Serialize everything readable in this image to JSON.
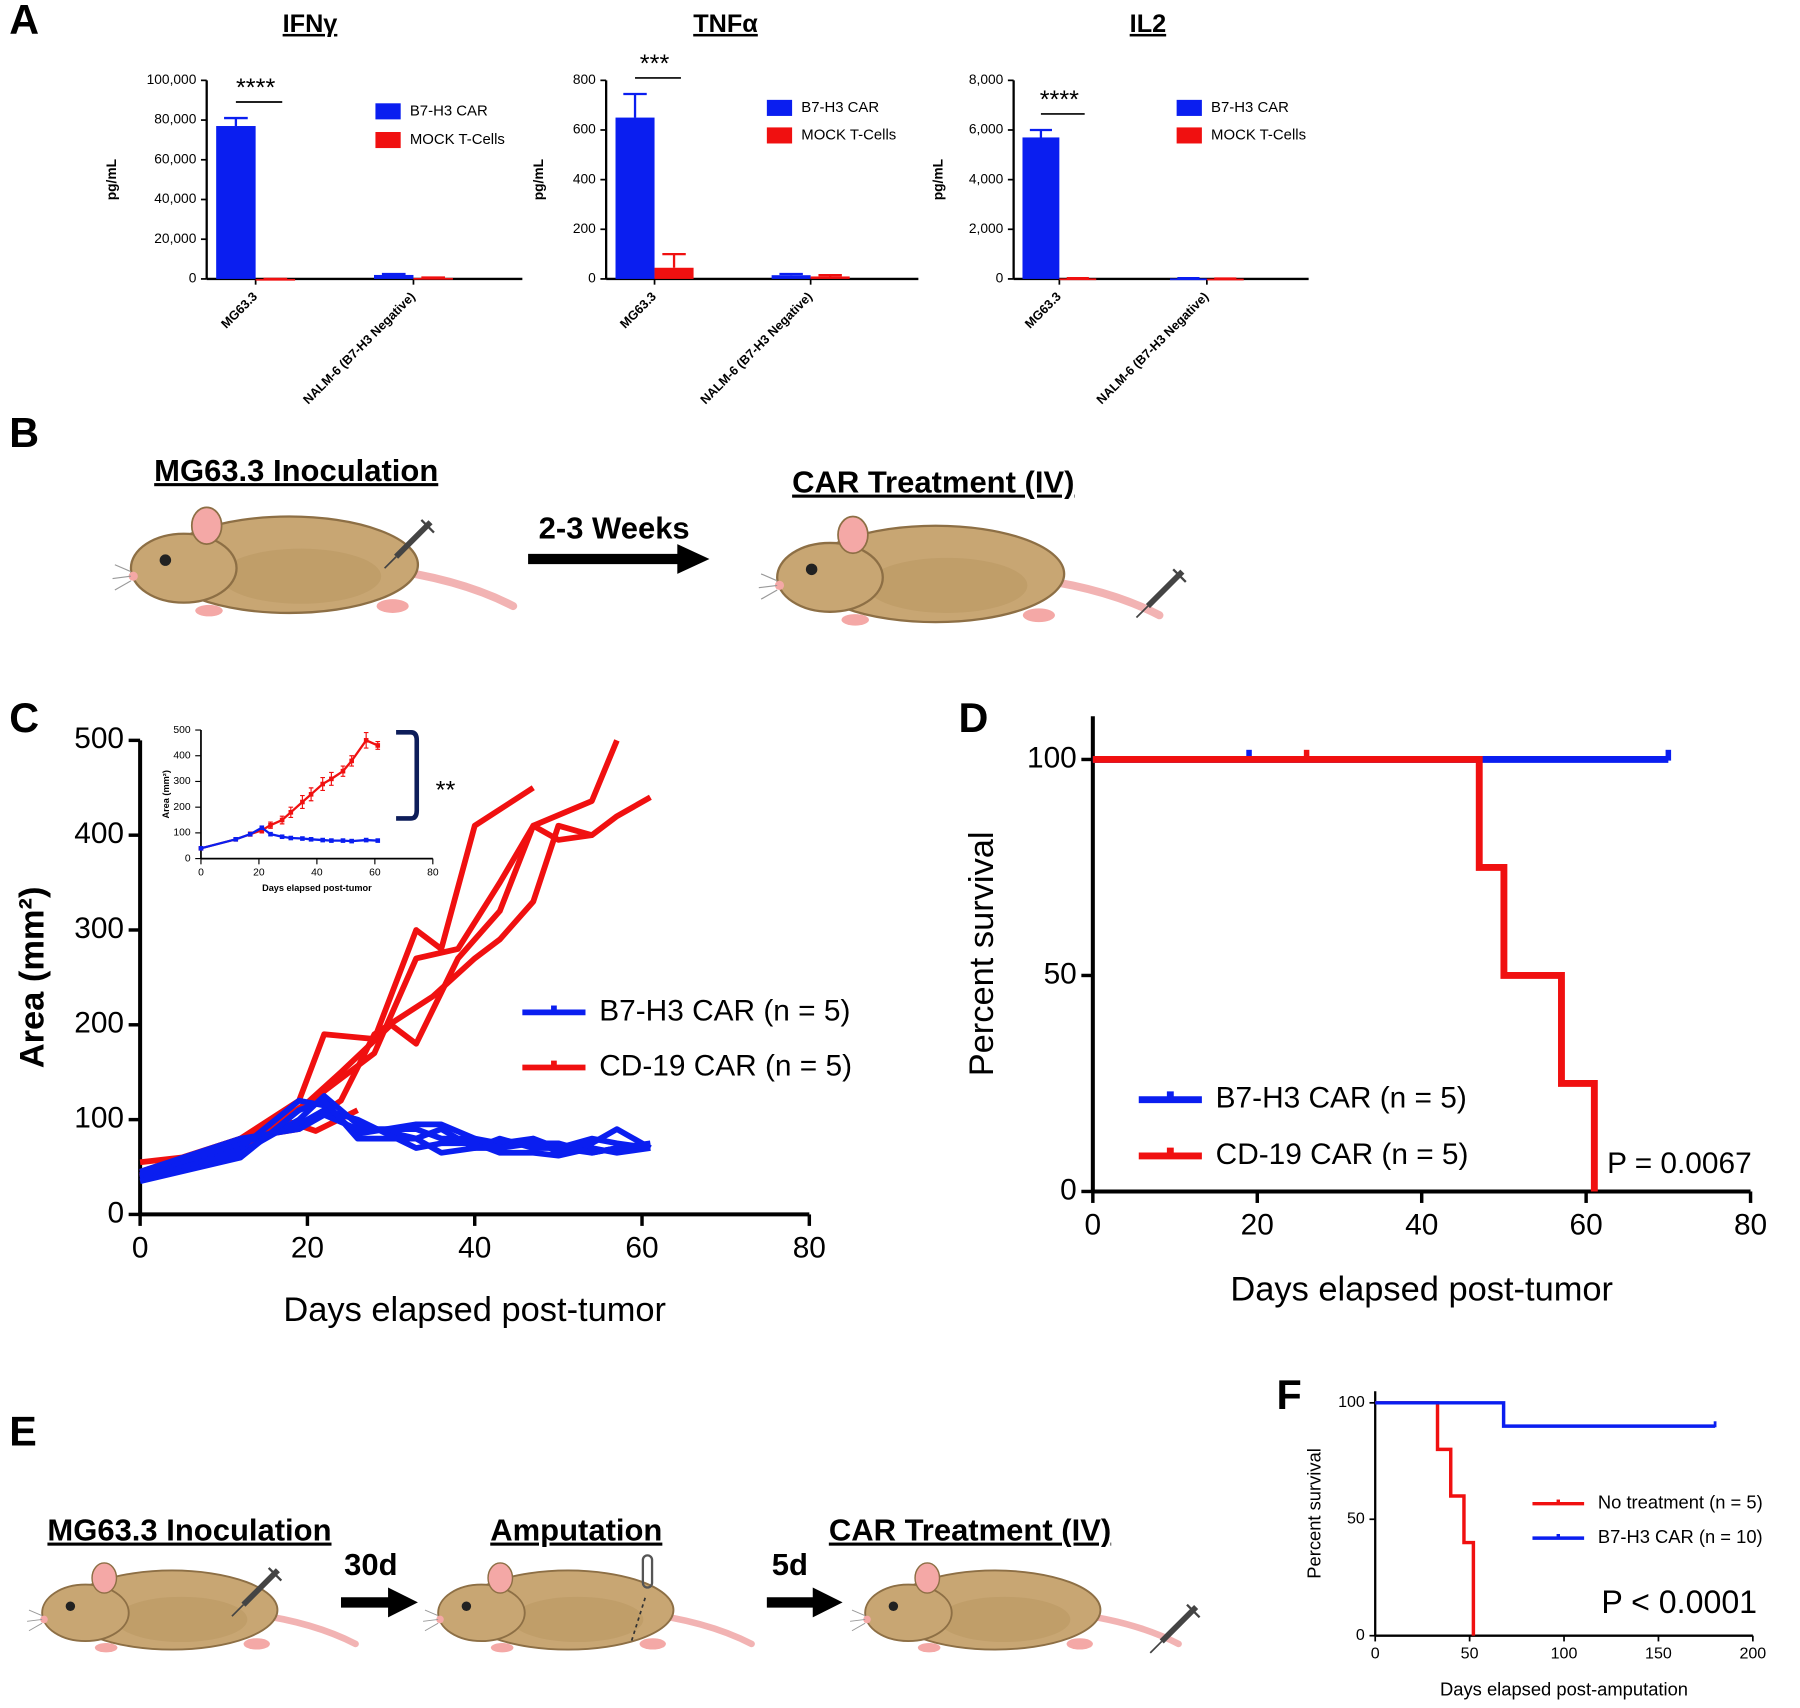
{
  "panel_labels": [
    "A",
    "B",
    "C",
    "D",
    "E",
    "F"
  ],
  "diagrams": {
    "B": {
      "steps": [
        "MG63.3 Inoculation",
        "CAR Treatment (IV)"
      ],
      "arrows": [
        "2-3 Weeks"
      ]
    },
    "E": {
      "steps": [
        "MG63.3 Inoculation",
        "Amputation",
        "CAR Treatment (IV)"
      ],
      "arrows": [
        "30d",
        "5d"
      ]
    }
  },
  "chart_data": [
    {
      "type": "bar",
      "title": "IFNγ",
      "ylabel": "pg/mL",
      "categories": [
        "MG63.3",
        "NALM-6 (B7-H3 Negative)"
      ],
      "series": [
        {
          "name": "B7-H3 CAR",
          "color": "#0a1ef0",
          "values": [
            77000,
            2000
          ],
          "errors": [
            4000,
            500
          ]
        },
        {
          "name": "MOCK T-Cells",
          "color": "#f01010",
          "values": [
            0,
            500
          ],
          "errors": [
            0,
            200
          ]
        }
      ],
      "annotation": "****",
      "ylim": [
        0,
        100000
      ],
      "yticks": [
        0,
        {
          "value": 20000,
          "label": "20,000"
        },
        {
          "value": 40000,
          "label": "40,000"
        },
        {
          "value": 60000,
          "label": "60,000"
        },
        {
          "value": 80000,
          "label": "80,000"
        },
        {
          "value": 100000,
          "label": "100,000"
        }
      ]
    },
    {
      "type": "bar",
      "title": "TNFα",
      "ylabel": "pg/mL",
      "categories": [
        "MG63.3",
        "NALM-6 (B7-H3 Negative)"
      ],
      "series": [
        {
          "name": "B7-H3 CAR",
          "color": "#0a1ef0",
          "values": [
            650,
            15
          ],
          "errors": [
            95,
            5
          ]
        },
        {
          "name": "MOCK T-Cells",
          "color": "#f01010",
          "values": [
            45,
            10
          ],
          "errors": [
            55,
            5
          ]
        }
      ],
      "annotation": "***",
      "ylim": [
        0,
        800
      ],
      "yticks": [
        0,
        200,
        400,
        600,
        800
      ]
    },
    {
      "type": "bar",
      "title": "IL2",
      "ylabel": "pg/mL",
      "categories": [
        "MG63.3",
        "NALM-6 (B7-H3 Negative)"
      ],
      "series": [
        {
          "name": "B7-H3 CAR",
          "color": "#0a1ef0",
          "values": [
            5700,
            20
          ],
          "errors": [
            300,
            10
          ]
        },
        {
          "name": "MOCK T-Cells",
          "color": "#f01010",
          "values": [
            20,
            10
          ],
          "errors": [
            10,
            5
          ]
        }
      ],
      "annotation": "****",
      "ylim": [
        0,
        8000
      ],
      "yticks": [
        0,
        {
          "value": 2000,
          "label": "2,000"
        },
        {
          "value": 4000,
          "label": "4,000"
        },
        {
          "value": 6000,
          "label": "6,000"
        },
        {
          "value": 8000,
          "label": "8,000"
        }
      ]
    },
    {
      "type": "line",
      "ylabel": "Area (mm²)",
      "xlabel": "Days elapsed post-tumor",
      "xlim": [
        0,
        80
      ],
      "xticks": [
        0,
        20,
        40,
        60,
        80
      ],
      "ylim": [
        0,
        500
      ],
      "yticks": [
        0,
        100,
        200,
        300,
        400,
        500
      ],
      "series": [
        {
          "name": "B7-H3 CAR (n = 5)",
          "color": "#0a1ef0",
          "mice": [
            {
              "x": [
                0,
                12,
                19,
                22,
                26,
                33,
                36,
                40,
                43,
                47,
                50,
                54,
                57,
                61
              ],
              "values": [
                40,
                70,
                120,
                115,
                85,
                95,
                95,
                80,
                75,
                80,
                65,
                75,
                90,
                70
              ]
            },
            {
              "x": [
                0,
                12,
                19,
                22,
                26,
                33,
                36,
                40,
                43,
                47,
                50,
                54,
                57,
                61
              ],
              "values": [
                38,
                65,
                100,
                125,
                95,
                80,
                90,
                70,
                80,
                70,
                70,
                65,
                70,
                72
              ]
            },
            {
              "x": [
                0,
                12,
                19,
                22,
                26,
                33,
                36,
                40,
                43,
                47,
                50,
                54,
                57,
                61
              ],
              "values": [
                42,
                75,
                95,
                110,
                100,
                70,
                75,
                75,
                65,
                65,
                62,
                70,
                65,
                70
              ]
            },
            {
              "x": [
                0,
                12,
                19,
                22,
                26,
                33,
                36,
                40,
                43,
                47,
                50,
                54,
                57,
                61
              ],
              "values": [
                45,
                80,
                90,
                105,
                90,
                90,
                80,
                80,
                70,
                80,
                70,
                80,
                75,
                70
              ]
            },
            {
              "x": [
                0,
                12,
                19,
                22,
                26,
                33,
                36,
                40,
                43,
                47,
                50,
                54,
                57,
                61
              ],
              "values": [
                35,
                60,
                110,
                120,
                80,
                80,
                65,
                70,
                70,
                75,
                75,
                65,
                70,
                75
              ]
            }
          ]
        },
        {
          "name": "CD-19 CAR (n = 5)",
          "color": "#f01010",
          "mice": [
            {
              "x": [
                0,
                5,
                12,
                17,
                21,
                26
              ],
              "values": [
                55,
                60,
                80,
                100,
                88,
                110
              ]
            },
            {
              "x": [
                0,
                12,
                19,
                22,
                28,
                33,
                36,
                40,
                47
              ],
              "values": [
                45,
                80,
                120,
                190,
                185,
                300,
                280,
                410,
                450
              ]
            },
            {
              "x": [
                0,
                12,
                19,
                24,
                30,
                33,
                38,
                43,
                47,
                54,
                57
              ],
              "values": [
                40,
                70,
                110,
                150,
                200,
                180,
                270,
                320,
                410,
                436,
                500
              ]
            },
            {
              "x": [
                0,
                12,
                19,
                24,
                28,
                35,
                40,
                43,
                47,
                50,
                54,
                57,
                61
              ],
              "values": [
                40,
                80,
                90,
                120,
                190,
                230,
                270,
                290,
                330,
                410,
                400,
                420,
                440
              ]
            },
            {
              "x": [
                0,
                12,
                17,
                22,
                28,
                33,
                38,
                43,
                47,
                50,
                54
              ],
              "values": [
                40,
                75,
                100,
                130,
                170,
                270,
                280,
                350,
                410,
                395,
                400
              ]
            }
          ]
        }
      ]
    },
    {
      "type": "line",
      "ylabel": "Area (mm²)",
      "xlabel": "Days elapsed post-tumor",
      "xlim": [
        0,
        80
      ],
      "xticks": [
        0,
        20,
        40,
        60,
        80
      ],
      "ylim": [
        0,
        500
      ],
      "yticks": [
        0,
        100,
        200,
        300,
        400,
        500
      ],
      "annotation": "**",
      "series": [
        {
          "color": "#0a1ef0",
          "x": [
            0,
            12,
            17,
            21,
            24,
            28,
            31,
            35,
            38,
            42,
            45,
            49,
            52,
            57,
            61
          ],
          "values": [
            40,
            75,
            95,
            120,
            95,
            85,
            80,
            78,
            75,
            72,
            70,
            70,
            68,
            72,
            70
          ]
        },
        {
          "color": "#f01010",
          "x": [
            0,
            12,
            17,
            21,
            24,
            28,
            31,
            35,
            38,
            42,
            45,
            49,
            52,
            57,
            61
          ],
          "values": [
            40,
            75,
            95,
            110,
            130,
            150,
            180,
            220,
            250,
            290,
            310,
            340,
            380,
            460,
            440
          ],
          "errors": [
            3,
            5,
            8,
            10,
            12,
            15,
            20,
            25,
            25,
            25,
            25,
            20,
            20,
            30,
            15
          ]
        }
      ]
    },
    {
      "type": "step",
      "ylabel": "Percent survival",
      "xlabel": "Days elapsed post-tumor",
      "xlim": [
        0,
        80
      ],
      "xticks": [
        0,
        20,
        40,
        60,
        80
      ],
      "ylim": [
        0,
        110
      ],
      "yticks": [
        0,
        50,
        100
      ],
      "annotation": "P = 0.0067",
      "series": [
        {
          "name": "B7-H3 CAR (n = 5)",
          "color": "#0a1ef0",
          "x": [
            0,
            70
          ],
          "values": [
            100,
            100
          ],
          "censored": [
            19,
            70
          ]
        },
        {
          "name": "CD-19 CAR (n = 5)",
          "color": "#f01010",
          "x": [
            0,
            47,
            50,
            57,
            61
          ],
          "values": [
            100,
            75,
            50,
            25,
            0
          ],
          "censored": [
            26
          ]
        }
      ]
    },
    {
      "type": "step",
      "ylabel": "Percent survival",
      "xlabel": "Days elapsed post-amputation",
      "xlim": [
        0,
        200
      ],
      "xticks": [
        0,
        50,
        100,
        150,
        200
      ],
      "ylim": [
        0,
        105
      ],
      "yticks": [
        0,
        50,
        100
      ],
      "annotation": "P < 0.0001",
      "series": [
        {
          "name": "No treatment (n = 5)",
          "color": "#f01010",
          "x": [
            0,
            33,
            40,
            47,
            52
          ],
          "values": [
            100,
            80,
            60,
            40,
            0
          ],
          "censored": []
        },
        {
          "name": "B7-H3 CAR (n = 10)",
          "color": "#0a1ef0",
          "x": [
            0,
            68,
            180
          ],
          "values": [
            100,
            90,
            90
          ],
          "censored": [
            180
          ]
        }
      ]
    }
  ]
}
